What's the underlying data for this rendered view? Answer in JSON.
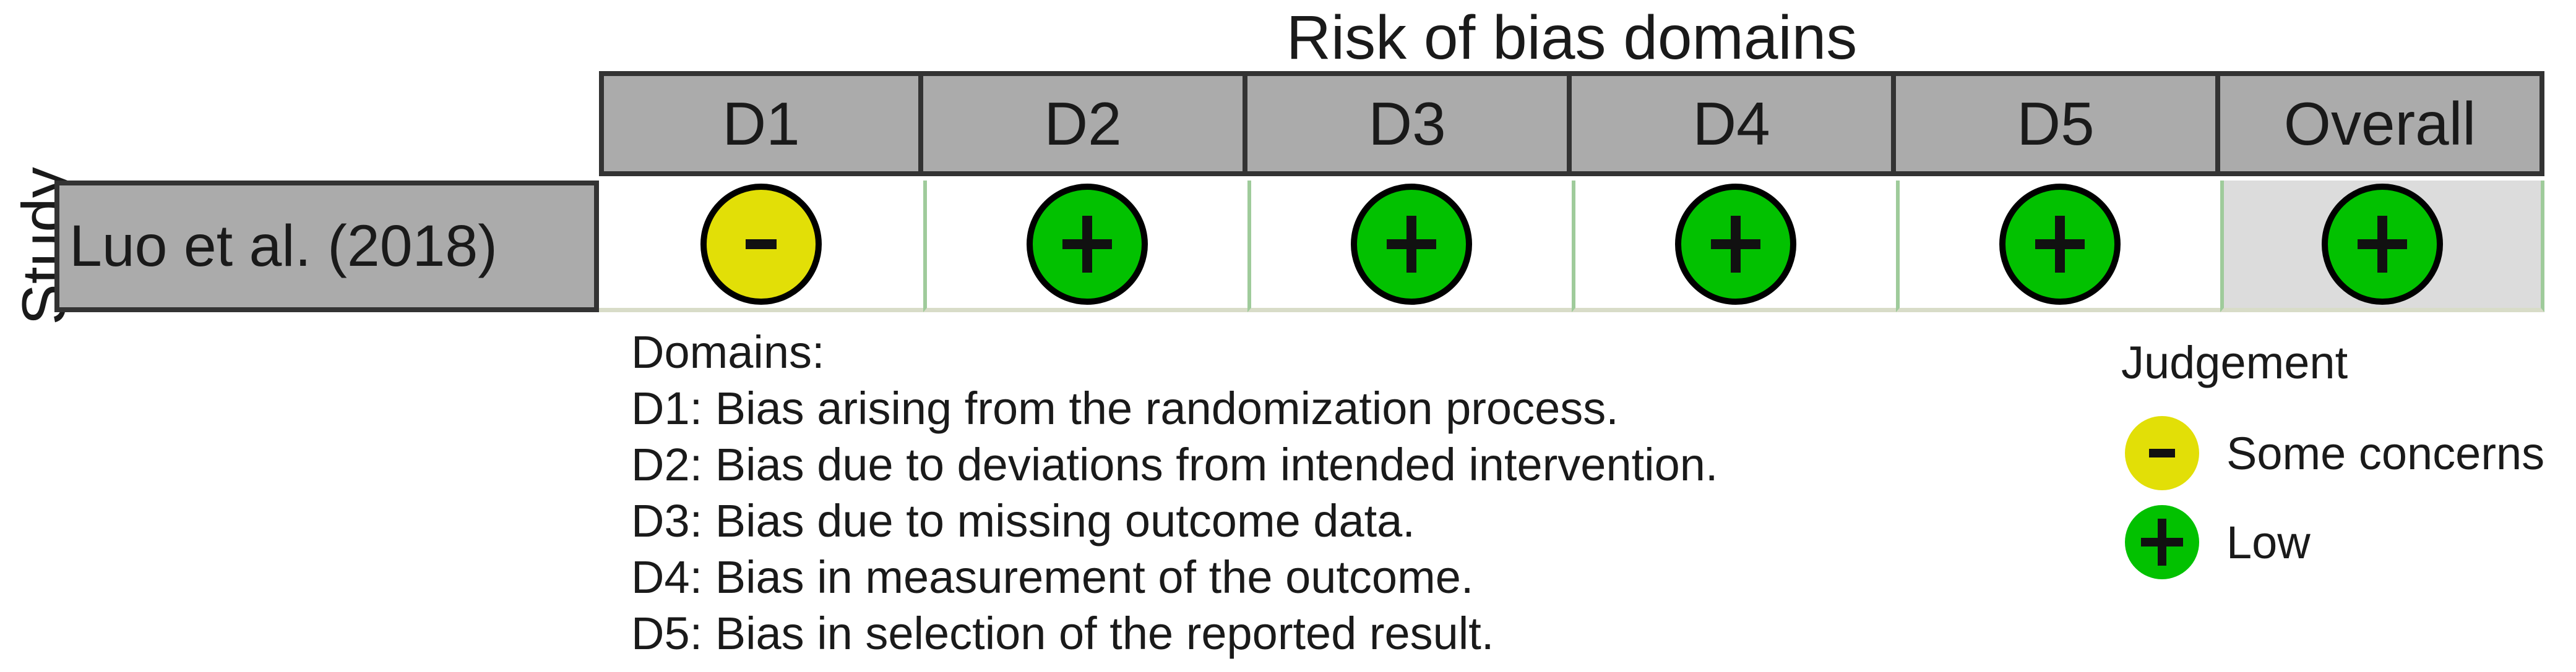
{
  "title": "Risk of bias domains",
  "axis": {
    "y_label": "Study"
  },
  "table": {
    "columns": [
      "D1",
      "D2",
      "D3",
      "D4",
      "D5",
      "Overall"
    ],
    "rows": [
      {
        "study": "Luo et al. (2018)",
        "judgements": [
          {
            "domain": "D1",
            "judgement": "some-concerns",
            "symbol": "-"
          },
          {
            "domain": "D2",
            "judgement": "low",
            "symbol": "+"
          },
          {
            "domain": "D3",
            "judgement": "low",
            "symbol": "+"
          },
          {
            "domain": "D4",
            "judgement": "low",
            "symbol": "+"
          },
          {
            "domain": "D5",
            "judgement": "low",
            "symbol": "+"
          },
          {
            "domain": "Overall",
            "judgement": "low",
            "symbol": "+"
          }
        ]
      }
    ]
  },
  "domains_legend": {
    "heading": "Domains:",
    "items": [
      "D1: Bias arising from the randomization process.",
      "D2: Bias due to deviations from intended intervention.",
      "D3: Bias due to missing outcome data.",
      "D4: Bias in measurement of the outcome.",
      "D5: Bias in selection of the reported result."
    ]
  },
  "judgement_legend": {
    "heading": "Judgement",
    "items": [
      {
        "judgement": "some-concerns",
        "symbol": "-",
        "label": "Some concerns"
      },
      {
        "judgement": "low",
        "symbol": "+",
        "label": "Low"
      }
    ]
  },
  "colors": {
    "low": "#02C100",
    "some_concerns": "#E2DF07",
    "header_fill": "#ABABAB",
    "study_cell_fill": "#ABABAB",
    "overall_cell_fill": "#DCDCDC",
    "dark_border": "#333333",
    "grid_green": "#9FCB9B",
    "grid_pale": "#D8DCC8",
    "symbol": "#111111"
  },
  "chart_data": {
    "type": "table",
    "title": "Risk of bias domains",
    "ylabel": "Study",
    "x_categories": [
      "D1",
      "D2",
      "D3",
      "D4",
      "D5",
      "Overall"
    ],
    "y_categories": [
      "Luo et al. (2018)"
    ],
    "values": [
      [
        "Some concerns",
        "Low",
        "Low",
        "Low",
        "Low",
        "Low"
      ]
    ],
    "legend_entries": [
      {
        "symbol": "-",
        "color": "#E2DF07",
        "label": "Some concerns"
      },
      {
        "symbol": "+",
        "color": "#02C100",
        "label": "Low"
      }
    ],
    "domain_definitions": [
      "D1: Bias arising from the randomization process.",
      "D2: Bias due to deviations from intended intervention.",
      "D3: Bias due to missing outcome data.",
      "D4: Bias in measurement of the outcome.",
      "D5: Bias in selection of the reported result."
    ]
  }
}
